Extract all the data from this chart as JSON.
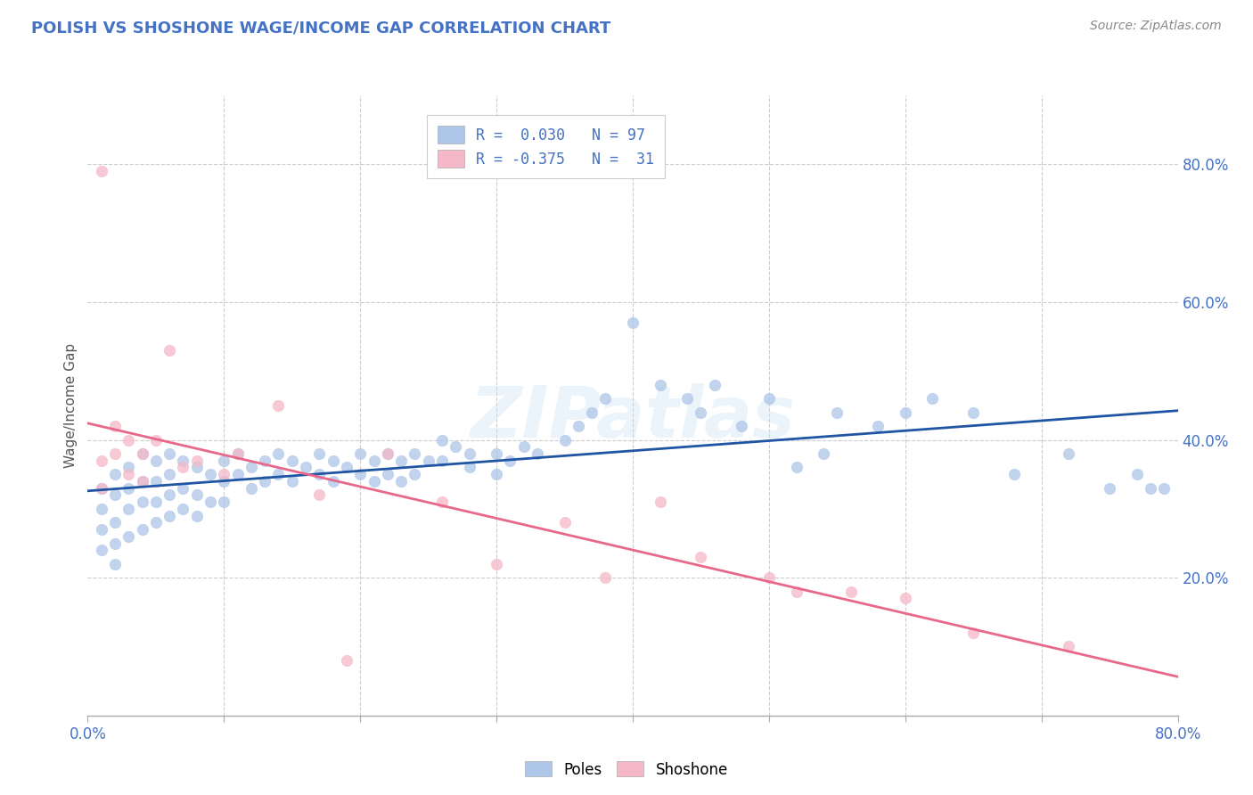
{
  "title": "POLISH VS SHOSHONE WAGE/INCOME GAP CORRELATION CHART",
  "source_text": "Source: ZipAtlas.com",
  "ylabel_text": "Wage/Income Gap",
  "xlim": [
    0.0,
    0.8
  ],
  "ylim": [
    0.0,
    0.9
  ],
  "x_ticks": [
    0.0,
    0.1,
    0.2,
    0.3,
    0.4,
    0.5,
    0.6,
    0.7,
    0.8
  ],
  "x_tick_labels": [
    "0.0%",
    "",
    "",
    "",
    "",
    "",
    "",
    "",
    "80.0%"
  ],
  "y_ticks_right": [
    0.2,
    0.4,
    0.6,
    0.8
  ],
  "y_tick_labels_right": [
    "20.0%",
    "40.0%",
    "60.0%",
    "80.0%"
  ],
  "blue_color": "#aec6e8",
  "pink_color": "#f4b8c8",
  "blue_line_color": "#2055a4",
  "pink_line_color": "#e8688a",
  "title_color": "#4472c4",
  "axis_label_color": "#4472c4",
  "source_color": "#888888",
  "ylabel_color": "#555555",
  "legend_label1": "R =  0.030   N = 97",
  "legend_label2": "R = -0.375   N =  31",
  "watermark": "ZIPatlas",
  "poles_x": [
    0.01,
    0.01,
    0.01,
    0.01,
    0.02,
    0.02,
    0.02,
    0.02,
    0.02,
    0.03,
    0.03,
    0.03,
    0.03,
    0.04,
    0.04,
    0.04,
    0.04,
    0.05,
    0.05,
    0.05,
    0.05,
    0.06,
    0.06,
    0.06,
    0.06,
    0.07,
    0.07,
    0.07,
    0.08,
    0.08,
    0.08,
    0.09,
    0.09,
    0.1,
    0.1,
    0.1,
    0.11,
    0.11,
    0.12,
    0.12,
    0.13,
    0.13,
    0.14,
    0.14,
    0.15,
    0.15,
    0.16,
    0.17,
    0.17,
    0.18,
    0.18,
    0.19,
    0.2,
    0.2,
    0.21,
    0.21,
    0.22,
    0.22,
    0.23,
    0.23,
    0.24,
    0.24,
    0.25,
    0.26,
    0.26,
    0.27,
    0.28,
    0.28,
    0.3,
    0.3,
    0.31,
    0.32,
    0.33,
    0.35,
    0.36,
    0.37,
    0.38,
    0.4,
    0.42,
    0.44,
    0.45,
    0.46,
    0.48,
    0.5,
    0.52,
    0.54,
    0.55,
    0.58,
    0.6,
    0.62,
    0.65,
    0.68,
    0.72,
    0.75,
    0.77,
    0.78,
    0.79
  ],
  "poles_y": [
    0.33,
    0.3,
    0.27,
    0.24,
    0.35,
    0.32,
    0.28,
    0.25,
    0.22,
    0.36,
    0.33,
    0.3,
    0.26,
    0.38,
    0.34,
    0.31,
    0.27,
    0.37,
    0.34,
    0.31,
    0.28,
    0.38,
    0.35,
    0.32,
    0.29,
    0.37,
    0.33,
    0.3,
    0.36,
    0.32,
    0.29,
    0.35,
    0.31,
    0.37,
    0.34,
    0.31,
    0.38,
    0.35,
    0.36,
    0.33,
    0.37,
    0.34,
    0.38,
    0.35,
    0.37,
    0.34,
    0.36,
    0.38,
    0.35,
    0.37,
    0.34,
    0.36,
    0.38,
    0.35,
    0.37,
    0.34,
    0.38,
    0.35,
    0.37,
    0.34,
    0.38,
    0.35,
    0.37,
    0.4,
    0.37,
    0.39,
    0.36,
    0.38,
    0.38,
    0.35,
    0.37,
    0.39,
    0.38,
    0.4,
    0.42,
    0.44,
    0.46,
    0.57,
    0.48,
    0.46,
    0.44,
    0.48,
    0.42,
    0.46,
    0.36,
    0.38,
    0.44,
    0.42,
    0.44,
    0.46,
    0.44,
    0.35,
    0.38,
    0.33,
    0.35,
    0.33,
    0.33
  ],
  "shoshone_x": [
    0.01,
    0.01,
    0.01,
    0.02,
    0.02,
    0.03,
    0.03,
    0.04,
    0.04,
    0.05,
    0.06,
    0.07,
    0.08,
    0.1,
    0.11,
    0.14,
    0.17,
    0.19,
    0.22,
    0.26,
    0.3,
    0.35,
    0.38,
    0.42,
    0.45,
    0.5,
    0.52,
    0.56,
    0.6,
    0.65,
    0.72
  ],
  "shoshone_y": [
    0.79,
    0.37,
    0.33,
    0.42,
    0.38,
    0.4,
    0.35,
    0.38,
    0.34,
    0.4,
    0.53,
    0.36,
    0.37,
    0.35,
    0.38,
    0.45,
    0.32,
    0.08,
    0.38,
    0.31,
    0.22,
    0.28,
    0.2,
    0.31,
    0.23,
    0.2,
    0.18,
    0.18,
    0.17,
    0.12,
    0.1
  ]
}
